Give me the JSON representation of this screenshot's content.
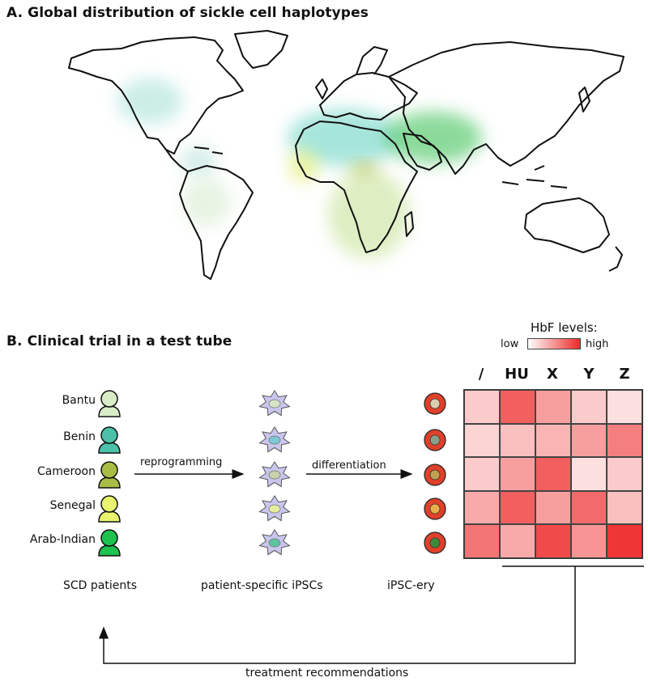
{
  "panel_a": {
    "title": "A. Global distribution of sickle cell haplotypes"
  },
  "panel_b": {
    "title": "B. Clinical trial in a test tube",
    "patients": [
      "Bantu",
      "Benin",
      "Cameroon",
      "Senegal",
      "Arab-Indian"
    ],
    "patient_colors": [
      "#d8ecc6",
      "#4cc0a8",
      "#a9bd44",
      "#e9f56e",
      "#1ec24e"
    ],
    "ipsc_nuclei_colors": [
      "#d6e6c4",
      "#7ec8d6",
      "#c7d3a8",
      "#e6ee9e",
      "#5cc6a0"
    ],
    "ery_center_colors": [
      "#d9cfb0",
      "#8a9f8a",
      "#c0a050",
      "#e8b04a",
      "#3f8a3a"
    ],
    "arrow_reprogramming": "reprogramming",
    "arrow_differentiation": "differentiation",
    "caption_patients": "SCD patients",
    "caption_ipsc": "patient-specific iPSCs",
    "caption_ery": "iPSC-ery",
    "feedback": "treatment recommendations"
  },
  "heatmap": {
    "legend_title": "HbF levels:",
    "legend_low": "low",
    "legend_high": "high",
    "columns": [
      "/",
      "HU",
      "X",
      "Y",
      "Z"
    ],
    "levels": [
      [
        0.25,
        0.75,
        0.45,
        0.25,
        0.15
      ],
      [
        0.2,
        0.3,
        0.35,
        0.45,
        0.6
      ],
      [
        0.25,
        0.45,
        0.75,
        0.15,
        0.25
      ],
      [
        0.4,
        0.75,
        0.45,
        0.7,
        0.3
      ],
      [
        0.65,
        0.4,
        0.85,
        0.5,
        0.95
      ]
    ]
  }
}
